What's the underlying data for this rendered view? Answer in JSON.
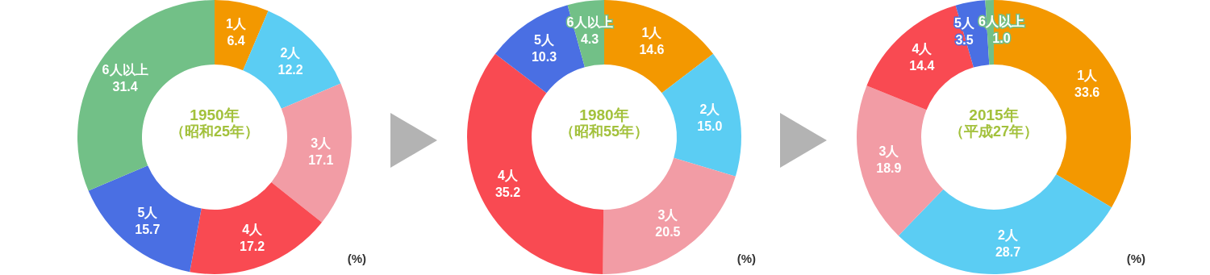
{
  "chart_data": [
    {
      "type": "donut",
      "title": "1950年",
      "subtitle": "（昭和25年）",
      "categories": [
        "1人",
        "2人",
        "3人",
        "4人",
        "5人",
        "6人以上"
      ],
      "values": [
        6.4,
        12.2,
        17.1,
        17.2,
        15.7,
        31.4
      ],
      "colors": [
        "#f39800",
        "#5bcdf3",
        "#f29ca5",
        "#f94a52",
        "#4a6fe3",
        "#72c087"
      ],
      "data_labels": true,
      "annotations": [
        "(%)"
      ]
    },
    {
      "type": "donut",
      "title": "1980年",
      "subtitle": "（昭和55年）",
      "categories": [
        "1人",
        "2人",
        "3人",
        "4人",
        "5人",
        "6人以上"
      ],
      "values": [
        14.6,
        15.0,
        20.5,
        35.2,
        10.3,
        4.3
      ],
      "colors": [
        "#f39800",
        "#5bcdf3",
        "#f29ca5",
        "#f94a52",
        "#4a6fe3",
        "#72c087"
      ],
      "value_labels": [
        "14.6",
        "15.0",
        "20.5",
        "35.2",
        "10.3",
        "4.3"
      ],
      "annotations": [
        "(%)"
      ]
    },
    {
      "type": "donut",
      "title": "2015年",
      "subtitle": "（平成27年）",
      "categories": [
        "1人",
        "2人",
        "3人",
        "4人",
        "5人",
        "6人以上"
      ],
      "values": [
        33.6,
        28.7,
        18.9,
        14.4,
        3.5,
        1.0
      ],
      "colors": [
        "#f39800",
        "#5bcdf3",
        "#f29ca5",
        "#f94a52",
        "#4a6fe3",
        "#72c087"
      ],
      "value_labels": [
        "33.6",
        "28.7",
        "18.9",
        "14.4",
        "3.5",
        "1.0"
      ],
      "annotations": [
        "(%)"
      ]
    }
  ]
}
